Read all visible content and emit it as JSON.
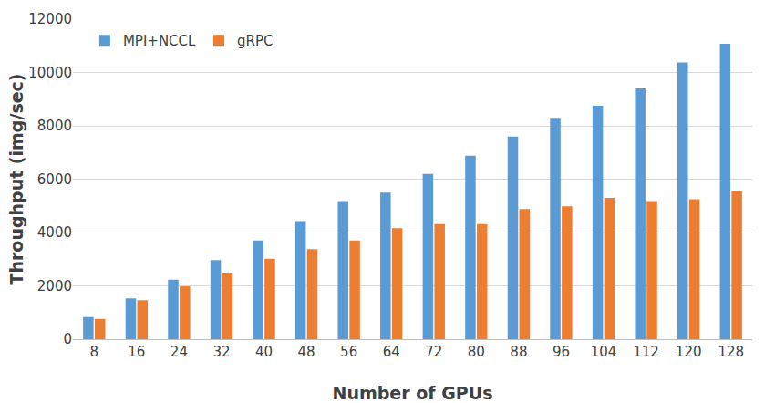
{
  "chart_data": {
    "type": "bar",
    "x_label": "Number of GPUs",
    "y_label": "Throughput (img/sec)",
    "categories": [
      "8",
      "16",
      "24",
      "32",
      "40",
      "48",
      "56",
      "64",
      "72",
      "80",
      "88",
      "96",
      "104",
      "112",
      "120",
      "128"
    ],
    "series": [
      {
        "name": "MPI+NCCL",
        "color": "#5b9bd5",
        "values": [
          830,
          1530,
          2230,
          2970,
          3700,
          4430,
          5180,
          5500,
          6200,
          6880,
          7600,
          8300,
          8750,
          9400,
          10380,
          11080
        ]
      },
      {
        "name": "gRPC",
        "color": "#ed7d31",
        "values": [
          760,
          1460,
          1980,
          2500,
          3020,
          3380,
          3700,
          4160,
          4320,
          4320,
          4880,
          4980,
          5300,
          5180,
          5250,
          5560
        ]
      }
    ],
    "ylim": [
      0,
      12000
    ],
    "yticks": [
      0,
      2000,
      4000,
      6000,
      8000,
      10000,
      12000
    ],
    "grid": true,
    "legend": "top left"
  }
}
